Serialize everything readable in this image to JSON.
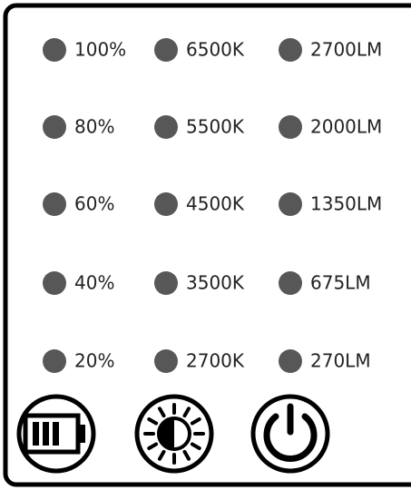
{
  "columns": [
    {
      "labels": [
        "100%",
        "80%",
        "60%",
        "40%",
        "20%"
      ]
    },
    {
      "labels": [
        "6500K",
        "5500K",
        "4500K",
        "3500K",
        "2700K"
      ]
    },
    {
      "labels": [
        "2700LM",
        "2000LM",
        "1350LM",
        "675LM",
        "270LM"
      ]
    }
  ]
}
